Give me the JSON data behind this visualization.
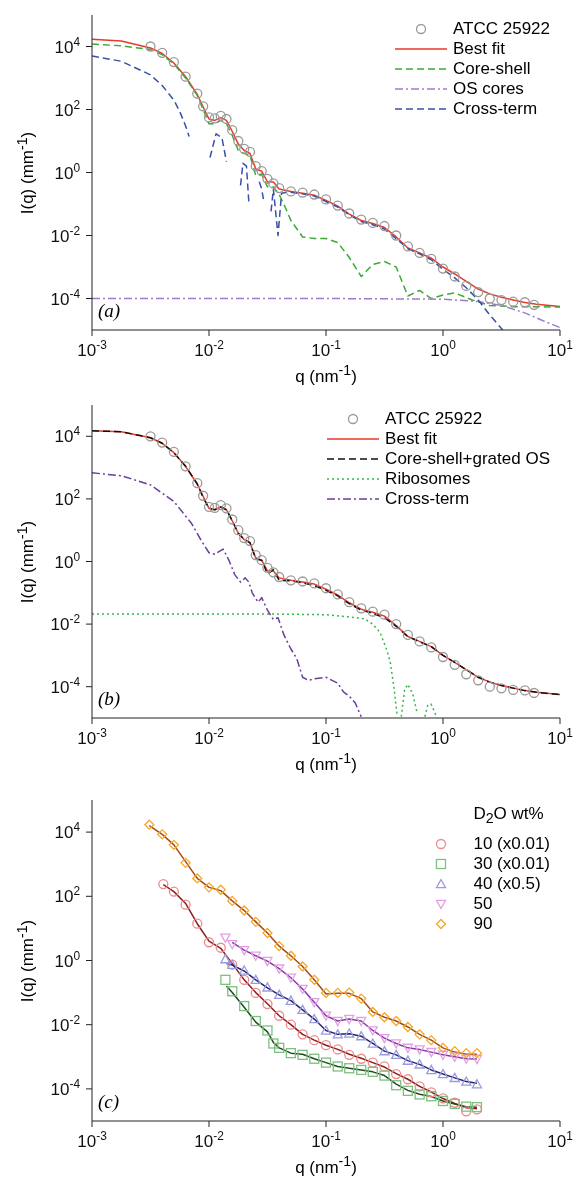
{
  "chart_data": [
    {
      "type": "line",
      "log": "xy",
      "xlabel": "q (nm$^{-1}$)",
      "ylabel": "I(q) (mm$^{-1}$)",
      "xlim": [
        0.001,
        10
      ],
      "ylim": [
        1e-05,
        100000
      ],
      "xticks": [
        {
          "value": 0.001,
          "label": "10$^{-3}$"
        },
        {
          "value": 0.01,
          "label": "10$^{-2}$"
        },
        {
          "value": 0.1,
          "label": "10$^{-1}$"
        },
        {
          "value": 1,
          "label": "10$^{0}$"
        },
        {
          "value": 10,
          "label": "10$^{1}$"
        }
      ],
      "yticks": [
        {
          "value": 0.0001,
          "label": "10$^{-4}$"
        },
        {
          "value": 0.01,
          "label": "10$^{-2}$"
        },
        {
          "value": 1,
          "label": "10$^{0}$"
        },
        {
          "value": 100,
          "label": "10$^{2}$"
        },
        {
          "value": 10000,
          "label": "10$^{4}$"
        }
      ],
      "legend": "top right",
      "annotations": [
        "(a)"
      ],
      "series": [
        {
          "name": "ATCC 25922",
          "type": "scatter",
          "marker": "circle",
          "color": "#999999",
          "x": [
            0.00316,
            0.00398,
            0.00501,
            0.00631,
            0.00794,
            0.00891,
            0.01,
            0.0112,
            0.0126,
            0.0141,
            0.0158,
            0.0178,
            0.02,
            0.0224,
            0.0251,
            0.0282,
            0.0316,
            0.0355,
            0.0398,
            0.0501,
            0.0631,
            0.0794,
            0.1,
            0.126,
            0.158,
            0.2,
            0.251,
            0.316,
            0.398,
            0.501,
            0.631,
            0.794,
            1,
            1.26,
            1.58,
            2,
            2.51,
            3.16,
            3.98,
            5.01,
            6.0
          ],
          "values": [
            10000,
            6300,
            3200,
            1100,
            320,
            126,
            56,
            52,
            63,
            50,
            22,
            10,
            5.6,
            4.5,
            1.6,
            1.1,
            0.63,
            0.45,
            0.32,
            0.25,
            0.23,
            0.2,
            0.14,
            0.089,
            0.05,
            0.032,
            0.025,
            0.02,
            0.01,
            0.0045,
            0.0028,
            0.0018,
            0.00089,
            0.0005,
            0.00025,
            0.00016,
            0.0001,
            8.9e-05,
            7.9e-05,
            7.6e-05,
            6.3e-05
          ]
        },
        {
          "name": "Best fit",
          "type": "line",
          "line_style": "solid",
          "color": "#e8392b",
          "x": [
            0.001,
            0.00178,
            0.00316,
            0.00398,
            0.00501,
            0.00631,
            0.00794,
            0.00891,
            0.01,
            0.0112,
            0.0126,
            0.0141,
            0.0158,
            0.0178,
            0.02,
            0.0224,
            0.0251,
            0.0282,
            0.0316,
            0.0355,
            0.0398,
            0.0501,
            0.0631,
            0.0794,
            0.1,
            0.126,
            0.158,
            0.2,
            0.251,
            0.316,
            0.398,
            0.501,
            0.631,
            0.794,
            1,
            1.26,
            1.58,
            2,
            2.51,
            3.16,
            3.98,
            5.01,
            6.31,
            10
          ],
          "values": [
            17000,
            15000,
            9000,
            6000,
            3000,
            1100,
            300,
            120,
            50,
            45,
            55,
            45,
            20,
            8,
            5,
            4,
            1.3,
            1.1,
            0.5,
            0.5,
            0.3,
            0.25,
            0.22,
            0.19,
            0.13,
            0.085,
            0.048,
            0.03,
            0.024,
            0.018,
            0.009,
            0.004,
            0.0028,
            0.0019,
            0.001,
            0.0006,
            0.00035,
            0.0002,
            0.00014,
            0.00011,
            9e-05,
            7.5e-05,
            6.6e-05,
            5.6e-05
          ]
        },
        {
          "name": "Core-shell",
          "type": "line",
          "line_style": "dashed",
          "color": "#3aaa35",
          "x": [
            0.001,
            0.00178,
            0.00316,
            0.00398,
            0.00501,
            0.00631,
            0.00794,
            0.00891,
            0.01,
            0.0112,
            0.0126,
            0.0141,
            0.0158,
            0.0178,
            0.02,
            0.0224,
            0.0251,
            0.0282,
            0.0316,
            0.0355,
            0.0398,
            0.0447,
            0.0501,
            0.0631,
            0.0794,
            0.1,
            0.126,
            0.158,
            0.2,
            0.251,
            0.316,
            0.398,
            0.501,
            0.631,
            0.794,
            1,
            1.26,
            1.78,
            2.51,
            3.98,
            10
          ],
          "values": [
            12000,
            10500,
            8000,
            5500,
            2800,
            1000,
            280,
            100,
            35,
            35,
            45,
            35,
            15,
            5,
            4,
            3.5,
            0.8,
            0.9,
            0.35,
            0.35,
            0.2,
            0.08,
            0.03,
            0.009,
            0.008,
            0.008,
            0.006,
            0.002,
            0.0005,
            0.0012,
            0.0015,
            0.001,
            0.00012,
            0.00018,
            0.0001,
            0.00013,
            0.00015,
            9e-05,
            6e-05,
            5.5e-05,
            5.4e-05
          ]
        },
        {
          "name": "OS cores",
          "type": "line",
          "line_style": "dashdot",
          "color": "#a07cc8",
          "x": [
            0.001,
            0.1,
            1,
            2,
            3.16,
            5.01,
            7.08,
            10
          ],
          "values": [
            0.0001,
            0.0001,
            9.5e-05,
            8e-05,
            6e-05,
            3.5e-05,
            2e-05,
            1.2e-05
          ]
        },
        {
          "name": "Cross-term",
          "type": "line",
          "line_style": "dashed",
          "color": "#3850a8",
          "x": [
            0.001,
            0.00178,
            0.00316,
            0.00398,
            0.00501,
            0.00562,
            0.00631,
            0.00676,
            0.008,
            0.0102,
            0.0115,
            0.0129,
            0.0141,
            0.016,
            0.0186,
            0.0195,
            0.0209,
            0.0219,
            0.024,
            0.0269,
            0.0282,
            0.0295,
            0.032,
            0.0339,
            0.0355,
            0.0389,
            0.0417,
            0.0479,
            0.0631,
            0.0794,
            0.1,
            0.126,
            0.158,
            0.2,
            0.251,
            0.316,
            0.398,
            0.501,
            0.631,
            0.794,
            1,
            1.26,
            1.58,
            2,
            2.51,
            3.24
          ],
          "values": [
            5000,
            3400,
            1260,
            575,
            200,
            87,
            30,
            14,
            null,
            3,
            17,
            12.6,
            2.2,
            null,
            0.39,
            1.95,
            1.6,
            0.115,
            null,
            0.51,
            0.3,
            0.115,
            null,
            0.058,
            0.3,
            0.01,
            0.22,
            0.24,
            0.21,
            0.18,
            0.12,
            0.08,
            0.045,
            0.028,
            0.022,
            0.016,
            0.008,
            0.0038,
            0.0026,
            0.0017,
            0.00085,
            0.00045,
            0.00022,
            9e-05,
            3e-05,
            1e-05
          ]
        }
      ]
    },
    {
      "type": "line",
      "log": "xy",
      "xlabel": "q (nm$^{-1}$)",
      "ylabel": "I(q) (mm$^{-1}$)",
      "xlim": [
        0.001,
        10
      ],
      "ylim": [
        1e-05,
        100000
      ],
      "xticks": [
        {
          "value": 0.001,
          "label": "10$^{-3}$"
        },
        {
          "value": 0.01,
          "label": "10$^{-2}$"
        },
        {
          "value": 0.1,
          "label": "10$^{-1}$"
        },
        {
          "value": 1,
          "label": "10$^{0}$"
        },
        {
          "value": 10,
          "label": "10$^{1}$"
        }
      ],
      "yticks": [
        {
          "value": 0.0001,
          "label": "10$^{-4}$"
        },
        {
          "value": 0.01,
          "label": "10$^{-2}$"
        },
        {
          "value": 1,
          "label": "10$^{0}$"
        },
        {
          "value": 100,
          "label": "10$^{2}$"
        },
        {
          "value": 10000,
          "label": "10$^{4}$"
        }
      ],
      "legend": "top right",
      "annotations": [
        "(b)"
      ],
      "series": [
        {
          "name": "ATCC 25922",
          "type": "scatter",
          "marker": "circle",
          "color": "#999999",
          "x": [
            0.00316,
            0.00398,
            0.00501,
            0.00631,
            0.00794,
            0.00891,
            0.01,
            0.0112,
            0.0126,
            0.0141,
            0.0158,
            0.0178,
            0.02,
            0.0224,
            0.0251,
            0.0282,
            0.0316,
            0.0355,
            0.0398,
            0.0501,
            0.0631,
            0.0794,
            0.1,
            0.126,
            0.158,
            0.2,
            0.251,
            0.316,
            0.398,
            0.501,
            0.631,
            0.794,
            1,
            1.26,
            1.58,
            2,
            2.51,
            3.16,
            3.98,
            5.01,
            6.0
          ],
          "values": [
            10000,
            6300,
            3200,
            1100,
            320,
            126,
            56,
            52,
            63,
            50,
            22,
            10,
            5.6,
            4.5,
            1.6,
            1.1,
            0.63,
            0.45,
            0.32,
            0.25,
            0.23,
            0.2,
            0.14,
            0.089,
            0.05,
            0.032,
            0.025,
            0.02,
            0.01,
            0.0045,
            0.0028,
            0.0018,
            0.00089,
            0.0005,
            0.00025,
            0.00016,
            0.0001,
            8.9e-05,
            7.9e-05,
            7.6e-05,
            6.3e-05
          ]
        },
        {
          "name": "Best fit",
          "type": "line",
          "line_style": "solid",
          "color": "#e8392b",
          "x": [
            0.001,
            0.00178,
            0.00316,
            0.00398,
            0.00501,
            0.00631,
            0.00794,
            0.00891,
            0.01,
            0.0112,
            0.0126,
            0.0141,
            0.0158,
            0.0178,
            0.02,
            0.0224,
            0.0251,
            0.0282,
            0.0316,
            0.0355,
            0.0398,
            0.0501,
            0.0631,
            0.0794,
            0.1,
            0.126,
            0.158,
            0.2,
            0.251,
            0.316,
            0.398,
            0.501,
            0.631,
            0.794,
            1,
            1.26,
            1.58,
            2,
            2.51,
            3.16,
            3.98,
            5.01,
            6.31,
            10
          ],
          "values": [
            15000,
            14000,
            9000,
            6000,
            3000,
            1100,
            300,
            120,
            50,
            45,
            55,
            45,
            20,
            8,
            5,
            4,
            1.3,
            1.1,
            0.5,
            0.5,
            0.3,
            0.25,
            0.22,
            0.19,
            0.13,
            0.085,
            0.048,
            0.03,
            0.024,
            0.018,
            0.009,
            0.004,
            0.0028,
            0.0019,
            0.001,
            0.0006,
            0.00035,
            0.0002,
            0.00014,
            0.00011,
            9e-05,
            7.5e-05,
            6.6e-05,
            5.6e-05
          ]
        },
        {
          "name": "Core-shell+grated OS",
          "type": "line",
          "line_style": "dashed",
          "color": "#111111",
          "x": [
            0.001,
            0.00178,
            0.00316,
            0.00398,
            0.00501,
            0.00631,
            0.00794,
            0.00891,
            0.01,
            0.0112,
            0.0126,
            0.0141,
            0.0158,
            0.0178,
            0.02,
            0.0224,
            0.0251,
            0.0282,
            0.0316,
            0.0355,
            0.0398,
            0.0501,
            0.0631,
            0.0794,
            0.1,
            0.126,
            0.158,
            0.2,
            0.251,
            0.316,
            0.398,
            0.501,
            0.631,
            0.794,
            1,
            1.26,
            1.58,
            2,
            2.51,
            3.16,
            3.98,
            5.01,
            6.31,
            10
          ],
          "values": [
            15000,
            14000,
            9000,
            6000,
            3000,
            1100,
            300,
            110,
            50,
            45,
            55,
            45,
            20,
            8,
            5,
            4,
            1.2,
            1.1,
            0.4,
            0.55,
            0.25,
            0.24,
            0.21,
            0.17,
            0.12,
            0.08,
            0.045,
            0.028,
            0.022,
            0.016,
            0.0085,
            0.004,
            0.0027,
            0.0019,
            0.001,
            0.0006,
            0.00035,
            0.0002,
            0.00014,
            0.00011,
            9e-05,
            7.5e-05,
            6.6e-05,
            5.6e-05
          ]
        },
        {
          "name": "Ribosomes",
          "type": "line",
          "line_style": "dotted",
          "color": "#3ab54a",
          "x": [
            0.001,
            0.0316,
            0.1,
            0.158,
            0.214,
            0.251,
            0.288,
            0.331,
            0.355,
            0.38,
            0.407,
            0.43,
            0.44,
            0.47,
            0.5,
            0.55,
            0.6,
            0.63,
            0.7,
            0.74,
            0.79,
            0.85,
            0.88
          ],
          "values": [
            0.021,
            0.021,
            0.02,
            0.017,
            0.0148,
            0.01,
            0.0056,
            0.0015,
            0.00058,
            0.0001,
            1.1e-05,
            null,
            1.1e-05,
            8e-05,
            0.00012,
            6e-05,
            1.5e-05,
            null,
            1.1e-05,
            2.5e-05,
            2.8e-05,
            1.5e-05,
            1.1e-05
          ]
        },
        {
          "name": "Cross-term",
          "type": "line",
          "line_style": "dashdot",
          "color": "#6a3d9a",
          "x": [
            0.001,
            0.00178,
            0.00316,
            0.00501,
            0.00708,
            0.00871,
            0.01,
            0.0112,
            0.0132,
            0.0148,
            0.0166,
            0.0186,
            0.0204,
            0.0219,
            0.0234,
            0.0263,
            0.0282,
            0.0316,
            0.0355,
            0.0389,
            0.0437,
            0.0501,
            0.0562,
            0.0631,
            0.0708,
            0.0794,
            0.1,
            0.126,
            0.141,
            0.158,
            0.178,
            0.2
          ],
          "values": [
            680,
            550,
            280,
            83,
            16.6,
            4.3,
            1.9,
            1.7,
            2.5,
            1.1,
            0.38,
            0.22,
            0.3,
            0.22,
            0.1,
            0.05,
            0.07,
            0.028,
            0.014,
            0.016,
            0.0045,
            0.0016,
            0.0008,
            0.0002,
            0.00016,
            0.00018,
            0.0002,
            0.00013,
            6.8e-05,
            5e-05,
            3e-05,
            1.1e-05
          ]
        }
      ]
    },
    {
      "type": "line",
      "log": "xy",
      "xlabel": "q (nm$^{-1}$)",
      "ylabel": "I(q) (mm$^{-1}$)",
      "xlim": [
        0.001,
        10
      ],
      "ylim": [
        1e-05,
        100000
      ],
      "xticks": [
        {
          "value": 0.001,
          "label": "10$^{-3}$"
        },
        {
          "value": 0.01,
          "label": "10$^{-2}$"
        },
        {
          "value": 0.1,
          "label": "10$^{-1}$"
        },
        {
          "value": 1,
          "label": "10$^{0}$"
        },
        {
          "value": 10,
          "label": "10$^{1}$"
        }
      ],
      "yticks": [
        {
          "value": 0.0001,
          "label": "10$^{-4}$"
        },
        {
          "value": 0.01,
          "label": "10$^{-2}$"
        },
        {
          "value": 1,
          "label": "10$^{0}$"
        },
        {
          "value": 100,
          "label": "10$^{2}$"
        },
        {
          "value": 10000,
          "label": "10$^{4}$"
        }
      ],
      "legend": "top right",
      "legend_title": "D$_{2}$O wt%",
      "annotations": [
        "(c)"
      ],
      "series": [
        {
          "name": "10 (x0.01)",
          "type": "scatter",
          "marker": "circle",
          "color": "#ee8a8a",
          "x": [
            0.00407,
            0.00501,
            0.00631,
            0.00794,
            0.01,
            0.0126,
            0.0158,
            0.02,
            0.0251,
            0.0316,
            0.0398,
            0.0501,
            0.0631,
            0.0794,
            0.1,
            0.126,
            0.158,
            0.2,
            0.251,
            0.316,
            0.398,
            0.501,
            0.631,
            0.794,
            1,
            1.26,
            1.58,
            1.95
          ],
          "values": [
            240,
            140,
            55,
            14,
            3.7,
            2.5,
            0.74,
            0.25,
            0.098,
            0.044,
            0.019,
            0.01,
            0.005,
            0.0033,
            0.0023,
            0.0017,
            0.00115,
            0.00087,
            0.00066,
            0.0005,
            0.00029,
            0.0002,
            0.00012,
            7.8e-05,
            5.1e-05,
            3.7e-05,
            2e-05,
            2.3e-05
          ]
        },
        {
          "name": "30 (x0.01)",
          "type": "scatter",
          "marker": "square",
          "color": "#7fbf7f",
          "x": [
            0.0138,
            0.0158,
            0.02,
            0.0251,
            0.0316,
            0.0355,
            0.0398,
            0.0501,
            0.0631,
            0.0794,
            0.1,
            0.126,
            0.158,
            0.2,
            0.251,
            0.316,
            0.398,
            0.501,
            0.631,
            0.794,
            1,
            1.26,
            1.58,
            1.95
          ],
          "values": [
            0.25,
            0.11,
            0.038,
            0.013,
            0.0066,
            0.0026,
            0.0019,
            0.0013,
            0.00115,
            0.00087,
            0.00066,
            0.0005,
            0.00044,
            0.00039,
            0.00034,
            0.00026,
            0.00013,
            8.7e-05,
            6.7e-05,
            5.9e-05,
            4.2e-05,
            3.4e-05,
            2.8e-05,
            2.7e-05
          ]
        },
        {
          "name": "40 (x0.5)",
          "type": "scatter",
          "marker": "triangle",
          "color": "#9a9ade",
          "x": [
            0.0138,
            0.0158,
            0.02,
            0.0251,
            0.0316,
            0.0398,
            0.0501,
            0.0631,
            0.0794,
            0.1,
            0.126,
            0.158,
            0.2,
            0.251,
            0.316,
            0.398,
            0.501,
            0.631,
            0.794,
            1,
            1.26,
            1.58,
            1.95
          ],
          "values": [
            1.1,
            0.74,
            0.49,
            0.25,
            0.145,
            0.085,
            0.056,
            0.029,
            0.015,
            0.0066,
            0.005,
            0.0053,
            0.0044,
            0.0026,
            0.0015,
            0.00115,
            0.00076,
            0.00058,
            0.00039,
            0.00029,
            0.00022,
            0.00017,
            0.00014
          ]
        },
        {
          "name": "50",
          "type": "scatter",
          "marker": "triangle-down",
          "color": "#e2a0e2",
          "x": [
            0.0138,
            0.0158,
            0.02,
            0.0251,
            0.0316,
            0.0398,
            0.0501,
            0.0631,
            0.0794,
            0.1,
            0.126,
            0.158,
            0.2,
            0.251,
            0.316,
            0.398,
            0.501,
            0.631,
            0.794,
            1,
            1.26,
            1.58,
            1.95
          ],
          "values": [
            5.1,
            3.2,
            2.1,
            1.4,
            0.96,
            0.56,
            0.29,
            0.13,
            0.05,
            0.019,
            0.013,
            0.015,
            0.013,
            0.0066,
            0.0038,
            0.0026,
            0.0019,
            0.0017,
            0.0014,
            0.00115,
            0.001,
            0.00087,
            0.00085
          ]
        },
        {
          "name": "90",
          "type": "scatter",
          "marker": "diamond",
          "color": "#f5a623",
          "x": [
            0.00309,
            0.00398,
            0.00501,
            0.00631,
            0.00794,
            0.01,
            0.0126,
            0.0158,
            0.02,
            0.0251,
            0.0316,
            0.0398,
            0.0501,
            0.0631,
            0.0794,
            0.1,
            0.126,
            0.158,
            0.2,
            0.251,
            0.316,
            0.398,
            0.501,
            0.631,
            0.794,
            1,
            1.26,
            1.58,
            1.95
          ],
          "values": [
            17000,
            8500,
            4000,
            1100,
            360,
            190,
            160,
            72,
            36,
            16,
            7.2,
            2.8,
            1.4,
            0.65,
            0.25,
            0.098,
            0.098,
            0.1,
            0.065,
            0.025,
            0.017,
            0.013,
            0.0085,
            0.005,
            0.0033,
            0.0019,
            0.0015,
            0.0013,
            0.0013
          ]
        },
        {
          "type": "line",
          "line_style": "solid",
          "color": "#8b1e1e",
          "x": [
            0.00407,
            0.00501,
            0.00631,
            0.00794,
            0.01,
            0.0126,
            0.0158,
            0.02,
            0.0251,
            0.0316,
            0.0398,
            0.0501,
            0.0631,
            0.0794,
            0.1,
            0.126,
            0.158,
            0.2,
            0.251,
            0.316,
            0.398,
            0.501,
            0.631,
            0.794,
            1,
            1.26,
            1.58,
            1.95
          ],
          "values": [
            230,
            140,
            60,
            14,
            4,
            2.4,
            0.8,
            0.25,
            0.1,
            0.045,
            0.019,
            0.01,
            0.005,
            0.0033,
            0.0023,
            0.0017,
            0.0012,
            0.0009,
            0.00066,
            0.00048,
            0.0003,
            0.0002,
            0.00012,
            8e-05,
            5e-05,
            3.5e-05,
            2.6e-05,
            2.4e-05
          ]
        },
        {
          "type": "line",
          "line_style": "solid",
          "color": "#1d4d1d",
          "x": [
            0.0141,
            0.0158,
            0.02,
            0.0251,
            0.0316,
            0.0355,
            0.0398,
            0.0501,
            0.0631,
            0.0794,
            0.1,
            0.126,
            0.158,
            0.2,
            0.251,
            0.316,
            0.398,
            0.501,
            0.631,
            0.794,
            1,
            1.26,
            1.58,
            1.95
          ],
          "values": [
            0.16,
            0.1,
            0.035,
            0.012,
            0.006,
            0.0028,
            0.0019,
            0.0013,
            0.0012,
            0.00087,
            0.00066,
            0.0005,
            0.00044,
            0.00039,
            0.00034,
            0.00026,
            0.00014,
            9e-05,
            6.8e-05,
            5.8e-05,
            4.2e-05,
            3.4e-05,
            2.8e-05,
            2.7e-05
          ]
        },
        {
          "type": "line",
          "line_style": "solid",
          "color": "#23236e",
          "x": [
            0.0141,
            0.0158,
            0.02,
            0.0251,
            0.0316,
            0.0398,
            0.0501,
            0.0631,
            0.0794,
            0.1,
            0.126,
            0.158,
            0.2,
            0.251,
            0.316,
            0.398,
            0.501,
            0.631,
            0.794,
            1,
            1.26,
            1.58,
            1.95
          ],
          "values": [
            0.8,
            0.72,
            0.47,
            0.25,
            0.14,
            0.085,
            0.056,
            0.029,
            0.015,
            0.0066,
            0.005,
            0.0052,
            0.0044,
            0.0026,
            0.0015,
            0.00115,
            0.00076,
            0.00058,
            0.00039,
            0.00029,
            0.00022,
            0.00017,
            0.00015
          ]
        },
        {
          "type": "line",
          "line_style": "solid",
          "color": "#8b35a8",
          "x": [
            0.0158,
            0.02,
            0.0251,
            0.0316,
            0.0398,
            0.0501,
            0.0631,
            0.0794,
            0.1,
            0.126,
            0.158,
            0.2,
            0.251,
            0.316,
            0.398,
            0.501,
            0.631,
            0.794,
            1,
            1.26,
            1.58,
            1.95
          ],
          "values": [
            3.7,
            2.1,
            1.4,
            0.96,
            0.56,
            0.29,
            0.13,
            0.05,
            0.019,
            0.013,
            0.015,
            0.013,
            0.0066,
            0.0038,
            0.0026,
            0.0019,
            0.0017,
            0.0014,
            0.00115,
            0.001,
            0.00087,
            0.00085
          ]
        },
        {
          "type": "line",
          "line_style": "solid",
          "color": "#a84a14",
          "x": [
            0.00309,
            0.00398,
            0.00501,
            0.00631,
            0.00794,
            0.01,
            0.0126,
            0.0158,
            0.02,
            0.0251,
            0.0316,
            0.0398,
            0.0501,
            0.0631,
            0.0794,
            0.1,
            0.126,
            0.158,
            0.2,
            0.251,
            0.316,
            0.398,
            0.501,
            0.631,
            0.794,
            1,
            1.26,
            1.58,
            1.95
          ],
          "values": [
            16000,
            8500,
            4000,
            1200,
            360,
            190,
            150,
            72,
            36,
            16,
            7.2,
            2.8,
            1.4,
            0.65,
            0.25,
            0.09,
            0.095,
            0.095,
            0.065,
            0.025,
            0.017,
            0.013,
            0.0085,
            0.005,
            0.0033,
            0.0019,
            0.0014,
            0.0012,
            0.0012
          ]
        }
      ]
    }
  ]
}
